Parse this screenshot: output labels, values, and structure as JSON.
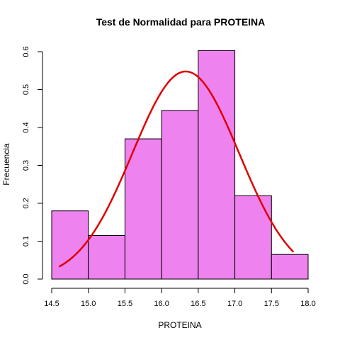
{
  "chart_data": {
    "type": "bar",
    "title": "Test de Normalidad para  PROTEINA",
    "xlabel": "PROTEINA",
    "ylabel": "Frecuencia",
    "xlim": [
      14.5,
      18.0
    ],
    "ylim": [
      0,
      0.6
    ],
    "x_ticks": [
      "14.5",
      "15.0",
      "15.5",
      "16.0",
      "16.5",
      "17.0",
      "17.5",
      "18.0"
    ],
    "y_ticks": [
      "0.0",
      "0.1",
      "0.2",
      "0.3",
      "0.4",
      "0.5",
      "0.6"
    ],
    "bins": [
      {
        "from": 14.5,
        "to": 15.0,
        "value": 0.18
      },
      {
        "from": 15.0,
        "to": 15.5,
        "value": 0.115
      },
      {
        "from": 15.5,
        "to": 16.0,
        "value": 0.37
      },
      {
        "from": 16.0,
        "to": 16.5,
        "value": 0.445
      },
      {
        "from": 16.5,
        "to": 17.0,
        "value": 0.603
      },
      {
        "from": 17.0,
        "to": 17.5,
        "value": 0.22
      },
      {
        "from": 17.5,
        "to": 18.0,
        "value": 0.065
      }
    ],
    "normal_curve": {
      "mean": 16.33,
      "peak": 0.548,
      "x_range": [
        14.6,
        17.8
      ]
    },
    "grid": false,
    "bar_color": "#ee82ee",
    "curve_color": "#e00000"
  }
}
